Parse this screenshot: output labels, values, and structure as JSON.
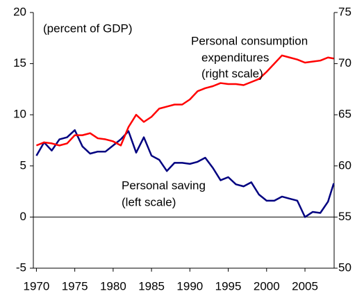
{
  "chart_data": {
    "type": "line",
    "annotations": [
      "(percent of GDP)",
      "Personal consumption",
      "expenditures",
      "(right scale)",
      "Personal saving",
      "(left scale)"
    ],
    "x": [
      1970,
      1971,
      1972,
      1973,
      1974,
      1975,
      1976,
      1977,
      1978,
      1979,
      1980,
      1981,
      1982,
      1983,
      1984,
      1985,
      1986,
      1987,
      1988,
      1989,
      1990,
      1991,
      1992,
      1993,
      1994,
      1995,
      1996,
      1997,
      1998,
      1999,
      2000,
      2001,
      2002,
      2003,
      2004,
      2005,
      2006,
      2007,
      2008,
      2008.75
    ],
    "series": [
      {
        "name": "Personal saving",
        "color": "#000080",
        "axis": "y",
        "values": [
          6.0,
          7.3,
          6.5,
          7.6,
          7.8,
          8.5,
          6.9,
          6.2,
          6.4,
          6.4,
          7.0,
          7.6,
          8.4,
          6.3,
          7.8,
          6.0,
          5.6,
          4.5,
          5.3,
          5.3,
          5.2,
          5.4,
          5.8,
          4.8,
          3.6,
          3.9,
          3.2,
          3.0,
          3.4,
          2.2,
          1.6,
          1.6,
          2.0,
          1.8,
          1.6,
          0.0,
          0.5,
          0.4,
          1.5,
          3.3
        ]
      },
      {
        "name": "Personal consumption expenditures",
        "color": "#ff0000",
        "axis": "y2",
        "values": [
          62.0,
          62.3,
          62.2,
          62.0,
          62.2,
          63.0,
          63.0,
          63.2,
          62.7,
          62.6,
          62.4,
          62.0,
          63.8,
          65.0,
          64.3,
          64.8,
          65.6,
          65.8,
          66.0,
          66.0,
          66.5,
          67.3,
          67.6,
          67.8,
          68.1,
          68.0,
          68.0,
          67.9,
          68.2,
          68.5,
          69.2,
          70.0,
          70.8,
          70.6,
          70.4,
          70.1,
          70.2,
          70.3,
          70.6,
          70.5
        ]
      }
    ],
    "xlim": [
      1969.6,
      2008.8
    ],
    "xticks": [
      1970,
      1975,
      1980,
      1985,
      1990,
      1995,
      2000,
      2005
    ],
    "ylim": [
      -5,
      20
    ],
    "yticks": [
      -5,
      0,
      5,
      10,
      15,
      20
    ],
    "y2lim": [
      50,
      75
    ],
    "y2ticks": [
      50,
      55,
      60,
      65,
      70,
      75
    ]
  }
}
